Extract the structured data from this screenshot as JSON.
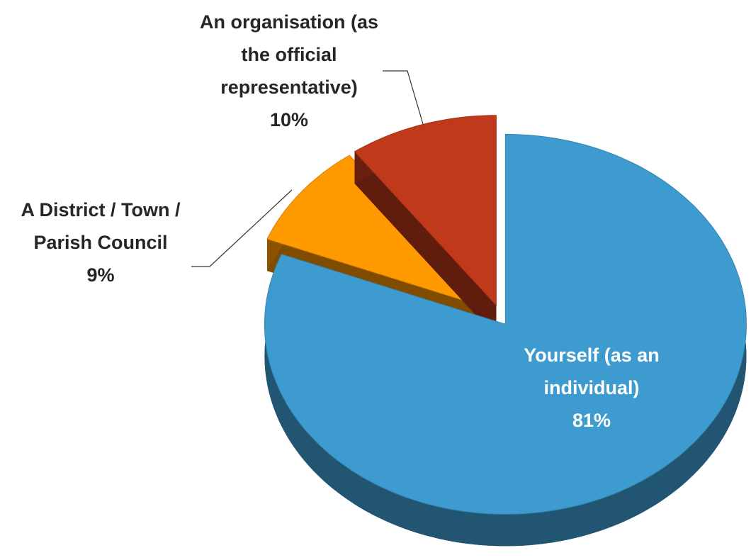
{
  "chart_data": {
    "type": "pie",
    "categories": [
      "Yourself (as an individual)",
      "A District / Town / Parish Council",
      "An organisation (as the official representative)"
    ],
    "values": [
      81,
      9,
      10
    ],
    "value_labels": [
      "81%",
      "9%",
      "10%"
    ],
    "colors": [
      "#3d9bd0",
      "#ff9900",
      "#c0391b"
    ]
  }
}
